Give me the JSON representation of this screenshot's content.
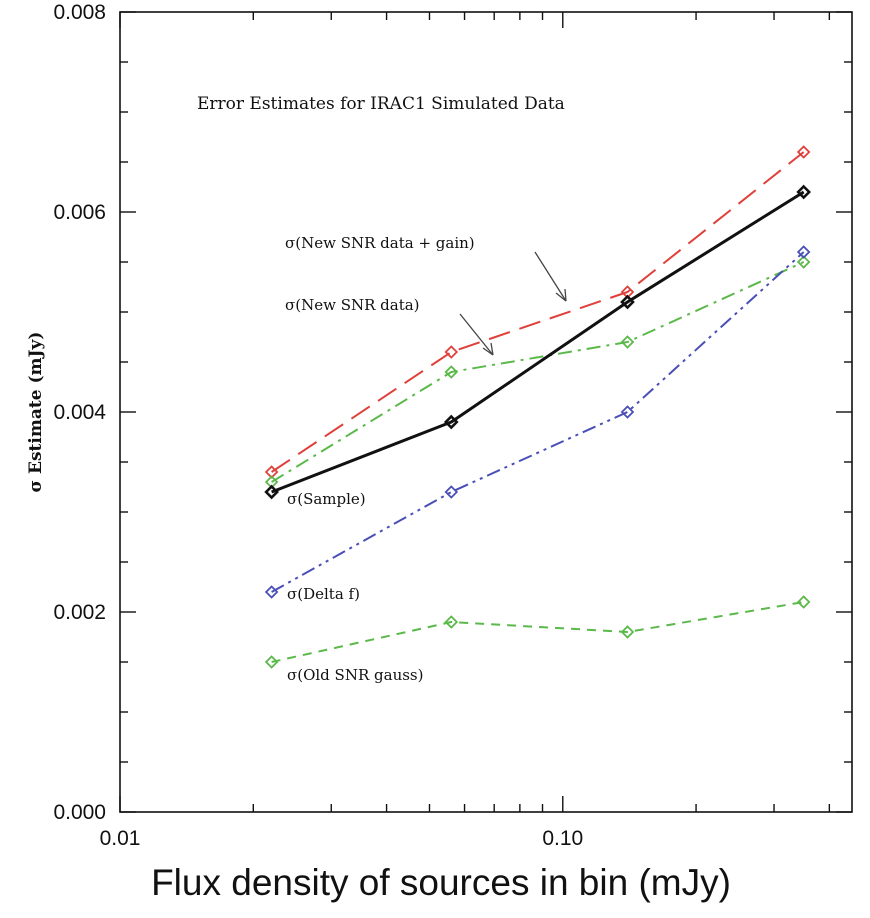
{
  "chart_data": {
    "type": "line",
    "title": "Error Estimates for IRAC1 Simulated Data",
    "xlabel": "Flux density of sources in bin (mJy)",
    "ylabel": "σ Estimate (mJy)",
    "x_scale": "log",
    "xlim": [
      0.01,
      0.45
    ],
    "ylim": [
      0.0,
      0.008
    ],
    "x_ticks": [
      {
        "value": 0.01,
        "label": "0.01"
      },
      {
        "value": 0.1,
        "label": "0.10"
      }
    ],
    "y_ticks": [
      {
        "value": 0.0,
        "label": "0.000"
      },
      {
        "value": 0.002,
        "label": "0.002"
      },
      {
        "value": 0.004,
        "label": "0.004"
      },
      {
        "value": 0.006,
        "label": "0.006"
      },
      {
        "value": 0.008,
        "label": "0.008"
      }
    ],
    "x": [
      0.022,
      0.056,
      0.14,
      0.35
    ],
    "series": [
      {
        "name": "σ(New SNR data + gain)",
        "color": "#e0403a",
        "dash": "dashed",
        "values": [
          0.0034,
          0.0046,
          0.0052,
          0.0066
        ]
      },
      {
        "name": "σ(New SNR data)",
        "color": "#5bb94a",
        "dash": "dash-dot",
        "values": [
          0.0033,
          0.0044,
          0.0047,
          0.0055
        ]
      },
      {
        "name": "σ(Sample)",
        "color": "#111111",
        "dash": "solid",
        "values": [
          0.0032,
          0.0039,
          0.0051,
          0.0062
        ]
      },
      {
        "name": "σ(Delta f)",
        "color": "#4a4fb8",
        "dash": "dash-dot-dot",
        "values": [
          0.0022,
          0.0032,
          0.004,
          0.0056
        ]
      },
      {
        "name": "σ(Old SNR gauss)",
        "color": "#5bb94a",
        "dash": "short-dash",
        "values": [
          0.0015,
          0.0019,
          0.0018,
          0.0021
        ]
      }
    ],
    "annotations": [
      {
        "text": "σ(New SNR data + gain)",
        "series": 0
      },
      {
        "text": "σ(New SNR data)",
        "series": 1
      },
      {
        "text": "σ(Sample)",
        "series": 2
      },
      {
        "text": "σ(Delta f)",
        "series": 3
      },
      {
        "text": "σ(Old SNR gauss)",
        "series": 4
      }
    ],
    "grid": false,
    "legend": "none"
  }
}
